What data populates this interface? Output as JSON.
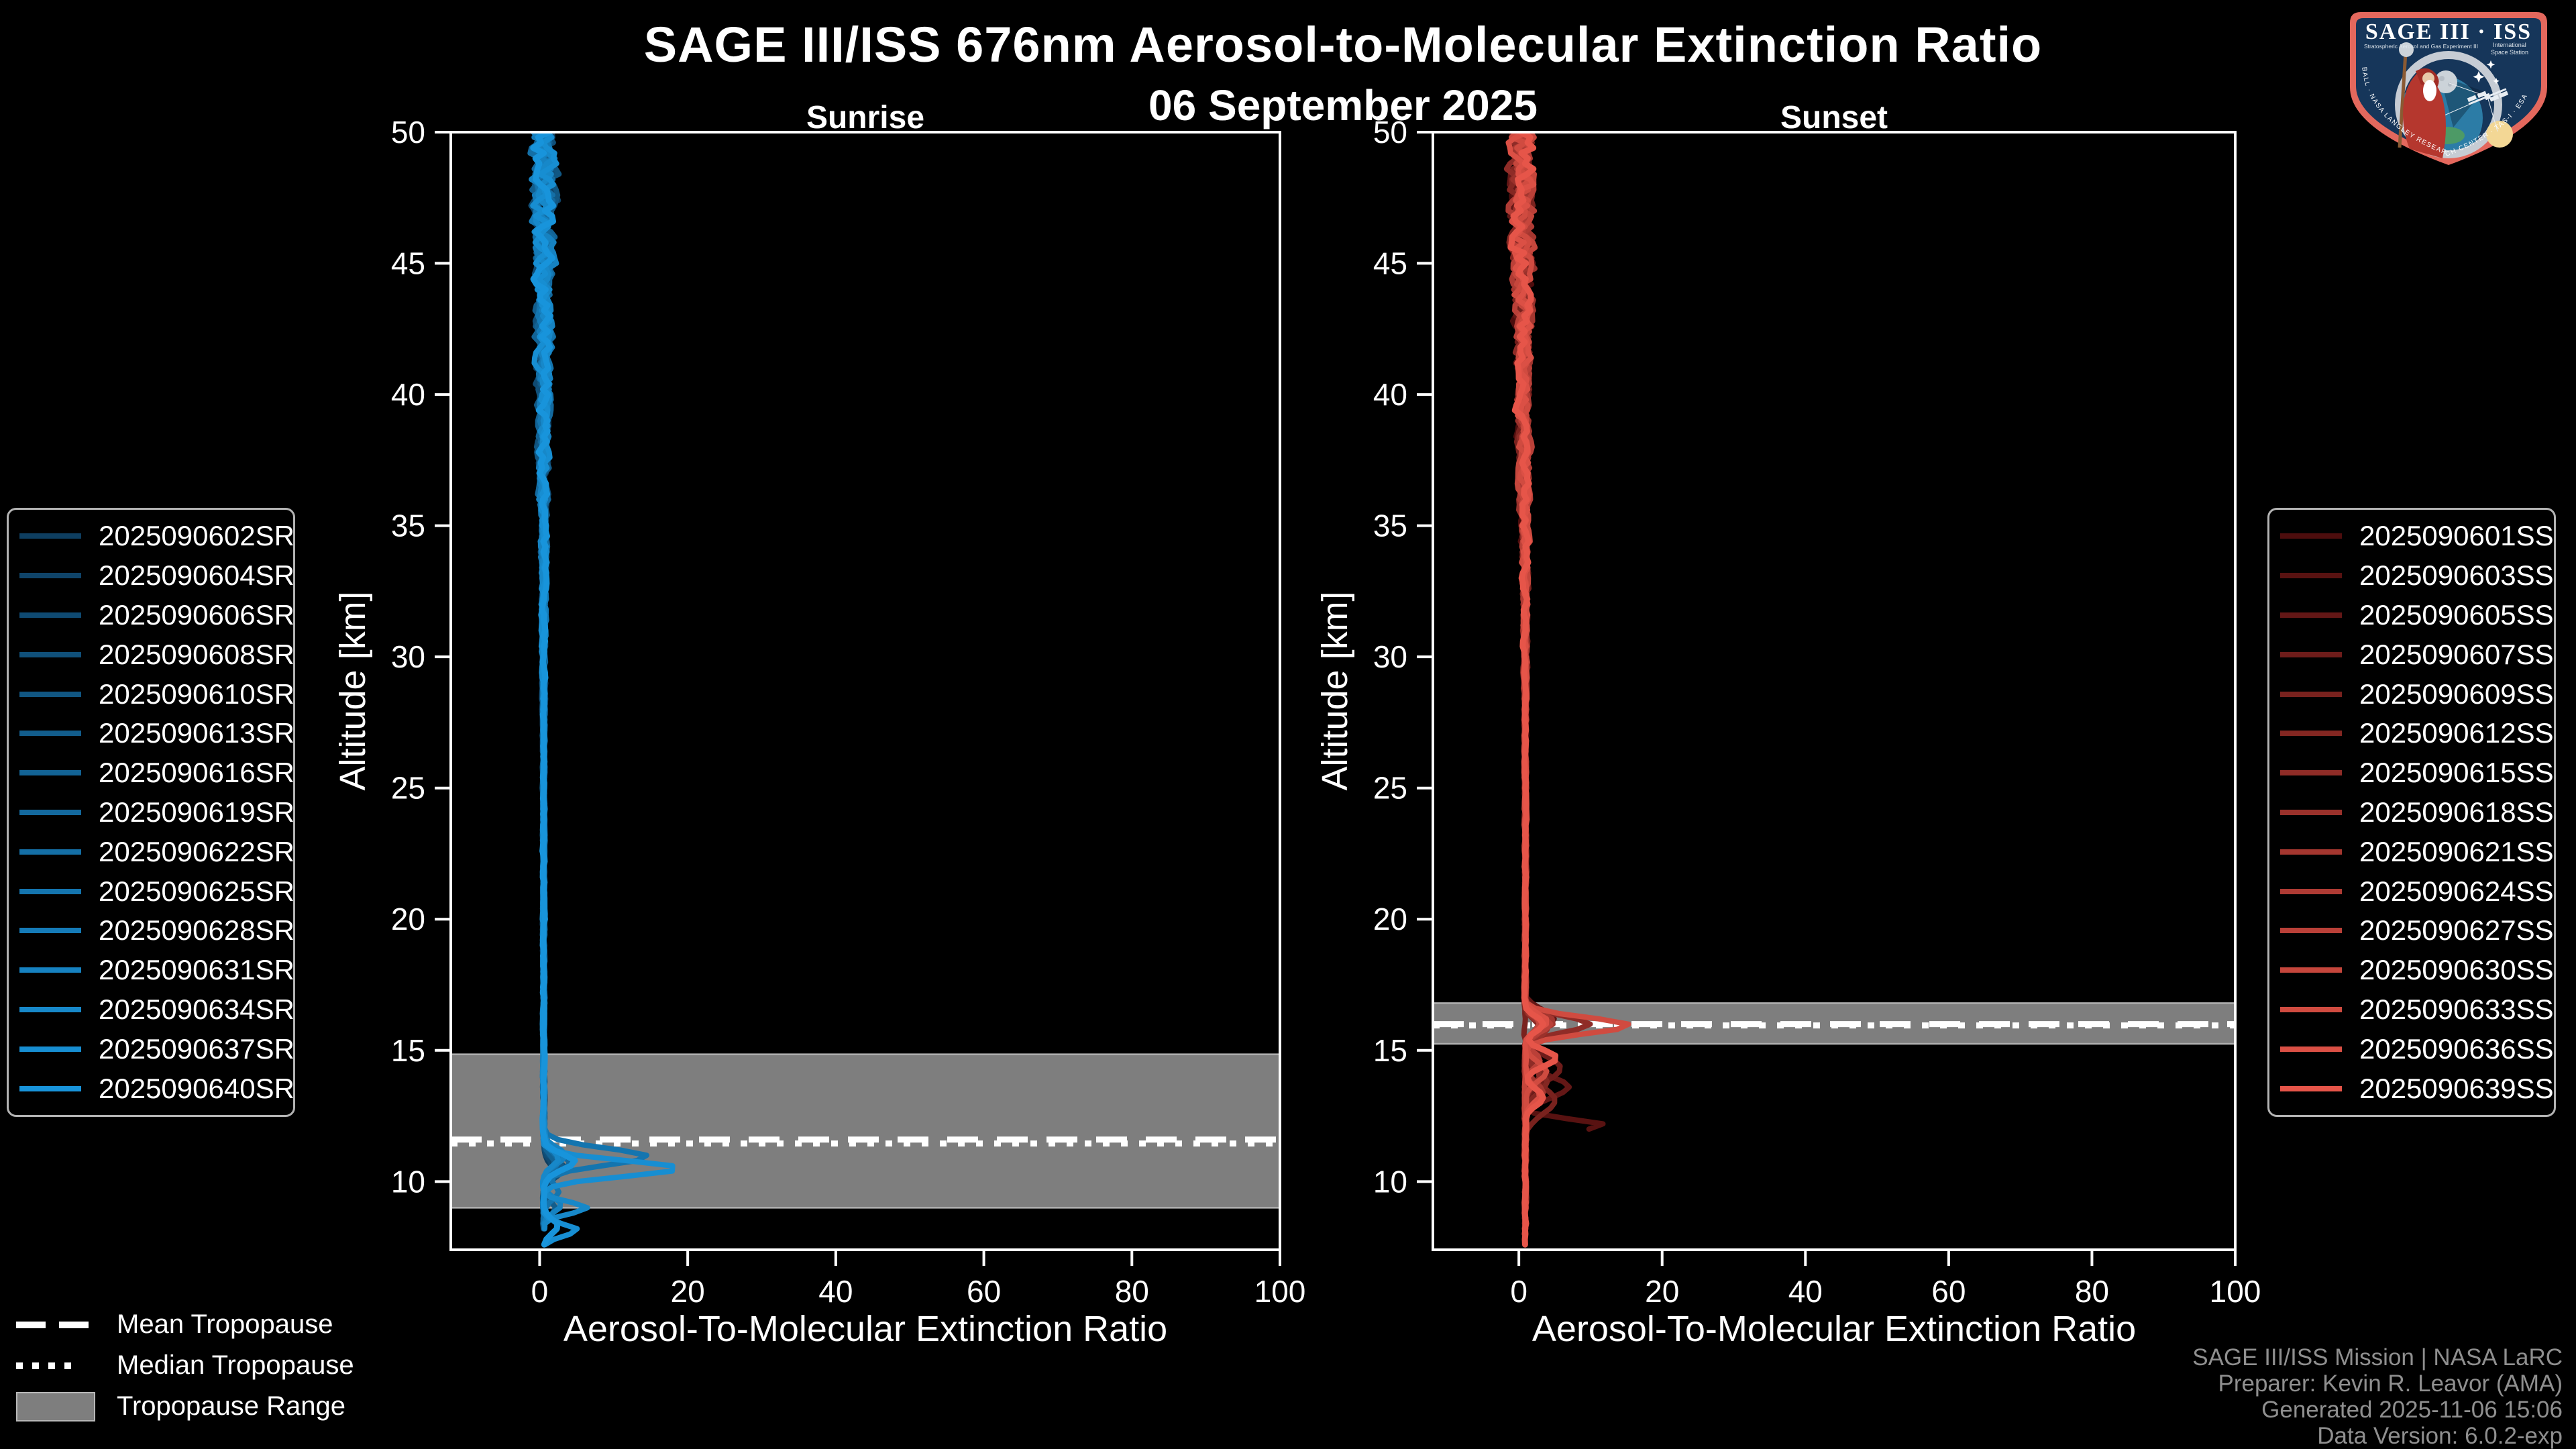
{
  "figure": {
    "title": "SAGE III/ISS 676nm Aerosol-to-Molecular Extinction Ratio",
    "subtitle": "06 September 2025",
    "background": "#000000"
  },
  "chart_data": [
    {
      "type": "line",
      "panel": "sunrise",
      "title": "Sunrise",
      "xlabel": "Aerosol-To-Molecular Extinction Ratio",
      "ylabel": "Altitude [km]",
      "xlim": [
        -12,
        100
      ],
      "ylim": [
        7.4,
        50
      ],
      "xticks": [
        0,
        20,
        40,
        60,
        80,
        100
      ],
      "yticks": [
        10,
        15,
        20,
        25,
        30,
        35,
        40,
        45,
        50
      ],
      "grid": false,
      "legend_position": "outside-left",
      "tropopause": {
        "mean_km": 11.6,
        "median_km": 11.45,
        "range_km": [
          9.0,
          14.85
        ]
      },
      "color_ramp": [
        "#0e3e60",
        "#1894db"
      ],
      "jitter": {
        "top_amp": 1.35,
        "low_amp": 0.12,
        "knee_km": 26,
        "base_x": 0.45,
        "drift_x": 0.1,
        "seed": 20250906
      },
      "series": [
        {
          "name": "2025090602SR",
          "bottom_km": 8.6,
          "spikes": [
            {
              "c": 10.3,
              "a": 1.5,
              "w": 0.3
            }
          ]
        },
        {
          "name": "2025090604SR",
          "bottom_km": 8.4,
          "spikes": [
            {
              "c": 10.4,
              "a": 2.2,
              "w": 0.3
            }
          ]
        },
        {
          "name": "2025090606SR",
          "bottom_km": 8.8,
          "spikes": [
            {
              "c": 10.5,
              "a": 1.2,
              "w": 0.3
            }
          ]
        },
        {
          "name": "2025090608SR",
          "bottom_km": 8.3,
          "spikes": [
            {
              "c": 10.5,
              "a": 3.0,
              "w": 0.3
            }
          ]
        },
        {
          "name": "2025090610SR",
          "bottom_km": 8.7,
          "spikes": [
            {
              "c": 10.6,
              "a": 1.8,
              "w": 0.3
            }
          ]
        },
        {
          "name": "2025090613SR",
          "bottom_km": 8.5,
          "spikes": [
            {
              "c": 10.6,
              "a": 2.5,
              "w": 0.3
            },
            {
              "c": 9.0,
              "a": 1.5,
              "w": 0.25
            }
          ]
        },
        {
          "name": "2025090616SR",
          "bottom_km": 8.9,
          "spikes": [
            {
              "c": 10.7,
              "a": 1.5,
              "w": 0.3
            }
          ]
        },
        {
          "name": "2025090619SR",
          "bottom_km": 8.2,
          "spikes": [
            {
              "c": 10.7,
              "a": 3.5,
              "w": 0.3
            }
          ]
        },
        {
          "name": "2025090622SR",
          "bottom_km": 8.6,
          "spikes": [
            {
              "c": 10.8,
              "a": 2.0,
              "w": 0.3
            }
          ]
        },
        {
          "name": "2025090625SR",
          "bottom_km": 8.4,
          "spikes": [
            {
              "c": 10.95,
              "a": 14.0,
              "w": 0.32
            },
            {
              "c": 9.6,
              "a": 2.0,
              "w": 0.3
            }
          ]
        },
        {
          "name": "2025090628SR",
          "bottom_km": 8.8,
          "spikes": [
            {
              "c": 10.9,
              "a": 2.5,
              "w": 0.3
            }
          ]
        },
        {
          "name": "2025090631SR",
          "bottom_km": 8.3,
          "spikes": [
            {
              "c": 11.0,
              "a": 3.0,
              "w": 0.3
            },
            {
              "c": 9.1,
              "a": 2.5,
              "w": 0.25
            }
          ]
        },
        {
          "name": "2025090634SR",
          "bottom_km": 8.1,
          "spikes": [
            {
              "c": 9.0,
              "a": 6.0,
              "w": 0.22
            },
            {
              "c": 10.9,
              "a": 2.0,
              "w": 0.3
            }
          ]
        },
        {
          "name": "2025090637SR",
          "bottom_km": 7.55,
          "spikes": [
            {
              "c": 10.5,
              "a": 18.5,
              "w": 0.3
            },
            {
              "c": 8.15,
              "a": 4.5,
              "w": 0.22
            }
          ]
        },
        {
          "name": "2025090640SR",
          "bottom_km": 7.45,
          "spikes": [
            {
              "c": 10.75,
              "a": 4.2,
              "w": 0.3
            },
            {
              "c": 8.3,
              "a": 2.0,
              "w": 0.25
            }
          ]
        }
      ],
      "notes": "15 overplotted sunrise extinction-ratio profiles hugging ratio 0 (jitter about +/-1.5 above 40 km); enhanced aerosol layer near 10.4-11 km with peak ratios about 14-19; small secondary bump near 8-9 km reaching about 5-7."
    },
    {
      "type": "line",
      "panel": "sunset",
      "title": "Sunset",
      "xlabel": "Aerosol-To-Molecular Extinction Ratio",
      "ylabel": "Altitude [km]",
      "xlim": [
        -12,
        100
      ],
      "ylim": [
        7.4,
        50
      ],
      "xticks": [
        0,
        20,
        40,
        60,
        80,
        100
      ],
      "yticks": [
        10,
        15,
        20,
        25,
        30,
        35,
        40,
        45,
        50
      ],
      "grid": false,
      "legend_position": "outside-right",
      "tropopause": {
        "mean_km": 16.0,
        "median_km": 15.95,
        "range_km": [
          15.25,
          16.8
        ]
      },
      "color_ramp": [
        "#4d0d0d",
        "#e65549"
      ],
      "jitter": {
        "top_amp": 1.5,
        "low_amp": 0.12,
        "knee_km": 26,
        "base_x": 0.5,
        "drift_x": 0.4,
        "seed": 19690720
      },
      "series": [
        {
          "name": "2025090601SS",
          "bottom_km": 12.4,
          "spikes": [
            {
              "c": 16.1,
              "a": 3.0,
              "w": 0.35
            }
          ]
        },
        {
          "name": "2025090603SS",
          "bottom_km": 11.9,
          "spikes": [
            {
              "c": 12.15,
              "a": 11.0,
              "w": 0.22
            },
            {
              "c": 16.0,
              "a": 2.0,
              "w": 0.3
            }
          ]
        },
        {
          "name": "2025090605SS",
          "bottom_km": 12.1,
          "spikes": [
            {
              "c": 13.6,
              "a": 6.0,
              "w": 0.4
            },
            {
              "c": 16.2,
              "a": 4.0,
              "w": 0.35
            }
          ]
        },
        {
          "name": "2025090607SS",
          "bottom_km": 8.6,
          "spikes": [
            {
              "c": 14.3,
              "a": 5.0,
              "w": 0.45
            },
            {
              "c": 16.0,
              "a": 2.5,
              "w": 0.3
            }
          ]
        },
        {
          "name": "2025090609SS",
          "bottom_km": 8.9,
          "spikes": [
            {
              "c": 13.1,
              "a": 4.0,
              "w": 0.5
            }
          ]
        },
        {
          "name": "2025090612SS",
          "bottom_km": 8.4,
          "spikes": [
            {
              "c": 15.9,
              "a": 2.0,
              "w": 0.3
            },
            {
              "c": 13.8,
              "a": 3.0,
              "w": 0.4
            }
          ]
        },
        {
          "name": "2025090615SS",
          "bottom_km": 8.8,
          "spikes": [
            {
              "c": 16.0,
              "a": 9.0,
              "w": 0.3
            },
            {
              "c": 14.0,
              "a": 2.0,
              "w": 0.35
            }
          ]
        },
        {
          "name": "2025090618SS",
          "bottom_km": 8.3,
          "spikes": [
            {
              "c": 15.8,
              "a": 3.0,
              "w": 0.3
            }
          ]
        },
        {
          "name": "2025090621SS",
          "bottom_km": 8.6,
          "spikes": [
            {
              "c": 16.1,
              "a": 4.0,
              "w": 0.3
            },
            {
              "c": 13.4,
              "a": 2.5,
              "w": 0.35
            }
          ]
        },
        {
          "name": "2025090624SS",
          "bottom_km": 8.2,
          "spikes": [
            {
              "c": 15.9,
              "a": 2.5,
              "w": 0.3
            }
          ]
        },
        {
          "name": "2025090627SS",
          "bottom_km": 8.5,
          "spikes": [
            {
              "c": 16.0,
              "a": 3.5,
              "w": 0.3
            },
            {
              "c": 14.6,
              "a": 2.0,
              "w": 0.3
            }
          ]
        },
        {
          "name": "2025090630SS",
          "bottom_km": 8.1,
          "spikes": [
            {
              "c": 16.05,
              "a": 2.0,
              "w": 0.3
            }
          ]
        },
        {
          "name": "2025090633SS",
          "bottom_km": 8.4,
          "spikes": [
            {
              "c": 15.95,
              "a": 14.5,
              "w": 0.3
            },
            {
              "c": 14.2,
              "a": 3.0,
              "w": 0.35
            }
          ]
        },
        {
          "name": "2025090636SS",
          "bottom_km": 8.0,
          "spikes": [
            {
              "c": 16.1,
              "a": 3.0,
              "w": 0.3
            },
            {
              "c": 13.3,
              "a": 2.0,
              "w": 0.3
            }
          ]
        },
        {
          "name": "2025090639SS",
          "bottom_km": 7.45,
          "spikes": [
            {
              "c": 16.0,
              "a": 2.5,
              "w": 0.28
            },
            {
              "c": 14.7,
              "a": 4.5,
              "w": 0.3
            },
            {
              "c": 13.2,
              "a": 2.5,
              "w": 0.3
            }
          ]
        }
      ],
      "notes": "15 overplotted sunset extinction-ratio profiles hugging ratio 0; aerosol layer at the tropopause near 16 km with peak ratios about 9-15; additional excursions of 2-11 between 12 and 14.7 km; darkest (earliest) profiles terminate near 12 km."
    }
  ],
  "tropopause_legend": {
    "items": [
      {
        "label": "Mean Tropopause",
        "style": "dashed"
      },
      {
        "label": "Median Tropopause",
        "style": "dotted"
      },
      {
        "label": "Tropopause Range",
        "style": "band"
      }
    ]
  },
  "attribution": {
    "lines": [
      "SAGE III/ISS Mission | NASA LaRC",
      "Preparer: Kevin R. Leavor (AMA)",
      "Generated 2025-11-06 15:06",
      "Data Version: 6.0.2-exp"
    ]
  },
  "logo": {
    "title": "SAGE III · ISS",
    "subtitle_left": "Stratospheric Aerosol and Gas Experiment III",
    "subtitle_right_1": "International",
    "subtitle_right_2": "Space Station",
    "border_text": "BALL · NASA LANGLEY RESEARCH CENTER · TAS-I · ESA"
  },
  "colors": {
    "axis": "#ffffff",
    "tick_label": "#ffffff",
    "band": "#7e7e7e",
    "band_edge": "#b0b0b0",
    "tropopause_line": "#ffffff",
    "legend_border": "#b3b3b3",
    "attribution": "#8f8f8f"
  }
}
